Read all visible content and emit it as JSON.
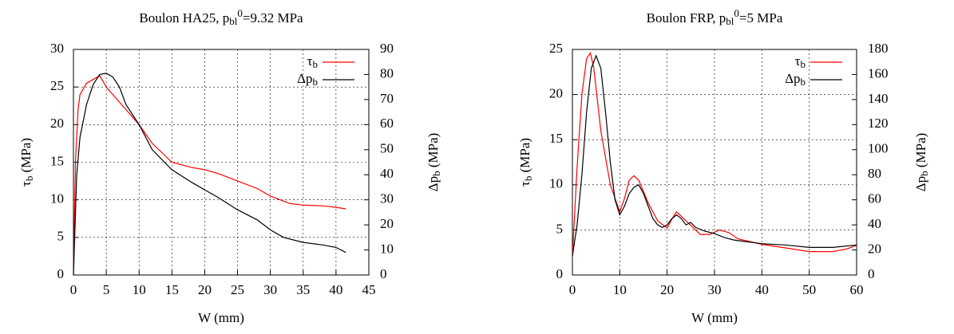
{
  "chart_data": [
    {
      "type": "line",
      "title": [
        "Boulon HA25, p",
        "bl",
        "0",
        "=9.32 MPa"
      ],
      "xlabel": "W (mm)",
      "ylabel": [
        "τ",
        "b",
        " (MPa)"
      ],
      "y2label": [
        "Δp",
        "b",
        " (MPa)"
      ],
      "xlim": [
        0,
        45
      ],
      "xticks": [
        0,
        5,
        10,
        15,
        20,
        25,
        30,
        35,
        40,
        45
      ],
      "ylim": [
        0,
        30
      ],
      "yticks": [
        0,
        5,
        10,
        15,
        20,
        25,
        30
      ],
      "y2lim": [
        0,
        90
      ],
      "y2ticks": [
        0,
        10,
        20,
        30,
        40,
        50,
        60,
        70,
        80,
        90
      ],
      "grid": true,
      "legend": "upper right",
      "series": [
        {
          "name": [
            "τ",
            "b"
          ],
          "color": "#ff0000",
          "x": [
            0,
            0.3,
            0.7,
            1,
            2,
            3,
            4,
            5,
            6,
            8,
            10,
            12,
            15,
            18,
            20,
            22,
            25,
            28,
            30,
            33,
            35,
            38,
            40,
            41.5
          ],
          "values": [
            0,
            15,
            22,
            24,
            25.5,
            26,
            26.5,
            25,
            24,
            22,
            20,
            17.5,
            15,
            14.3,
            14,
            13.5,
            12.5,
            11.5,
            10.5,
            9.5,
            9.3,
            9.2,
            9,
            8.8
          ]
        },
        {
          "name": [
            "Δp",
            "b"
          ],
          "color": "#000000",
          "axis": "y2",
          "x": [
            0,
            0.5,
            1,
            2,
            3,
            4,
            5,
            6,
            7,
            8,
            10,
            12,
            15,
            18,
            20,
            22,
            25,
            28,
            30,
            32,
            35,
            38,
            40,
            41.5
          ],
          "values": [
            0,
            40,
            55,
            68,
            76,
            80,
            80.5,
            79,
            75,
            68,
            60,
            50,
            42,
            37,
            34,
            31,
            26,
            22,
            18,
            15,
            13,
            12,
            11,
            9
          ]
        }
      ]
    },
    {
      "type": "line",
      "title": [
        "Boulon FRP, p",
        "bl",
        "0",
        "=5 MPa"
      ],
      "xlabel": "W (mm)",
      "ylabel": [
        "τ",
        "b",
        " (MPa)"
      ],
      "y2label": [
        "Δp",
        "b",
        " (MPa)"
      ],
      "xlim": [
        0,
        60
      ],
      "xticks": [
        0,
        10,
        20,
        30,
        40,
        50,
        60
      ],
      "ylim": [
        0,
        25
      ],
      "yticks": [
        0,
        5,
        10,
        15,
        20,
        25
      ],
      "y2lim": [
        0,
        180
      ],
      "y2ticks": [
        0,
        20,
        40,
        60,
        80,
        100,
        120,
        140,
        160,
        180
      ],
      "grid": true,
      "legend": "upper right",
      "series": [
        {
          "name": [
            "τ",
            "b"
          ],
          "color": "#ff0000",
          "x": [
            0,
            1,
            2,
            3,
            3.8,
            4.5,
            6,
            8,
            10,
            11,
            12,
            13,
            14,
            16,
            18,
            20,
            21,
            22,
            23,
            25,
            27,
            29,
            31,
            33,
            35,
            40,
            45,
            50,
            55,
            58,
            60
          ],
          "values": [
            2,
            12,
            20,
            24,
            24.6,
            23,
            16,
            10,
            7,
            8.5,
            10.5,
            11,
            10.5,
            8,
            6,
            5.2,
            6.2,
            7,
            6.5,
            5.5,
            4.5,
            4.5,
            5,
            4.7,
            4,
            3.4,
            3,
            2.6,
            2.6,
            2.9,
            3.3
          ]
        },
        {
          "name": [
            "Δp",
            "b"
          ],
          "color": "#000000",
          "axis": "y2",
          "x": [
            0,
            1,
            2,
            3,
            4,
            5,
            6,
            7,
            8,
            9,
            10,
            11,
            12,
            13,
            14,
            15,
            16,
            17,
            18,
            19,
            20,
            21,
            22,
            23,
            24,
            25,
            26,
            28,
            30,
            32,
            34,
            36,
            38,
            40,
            45,
            50,
            55,
            60
          ],
          "values": [
            15,
            40,
            80,
            130,
            165,
            175,
            165,
            130,
            90,
            60,
            48,
            55,
            65,
            70,
            72,
            65,
            55,
            45,
            40,
            38,
            40,
            45,
            48,
            45,
            40,
            42,
            38,
            35,
            33,
            30,
            28,
            27,
            26,
            25,
            24,
            22,
            22,
            24
          ]
        }
      ]
    }
  ]
}
